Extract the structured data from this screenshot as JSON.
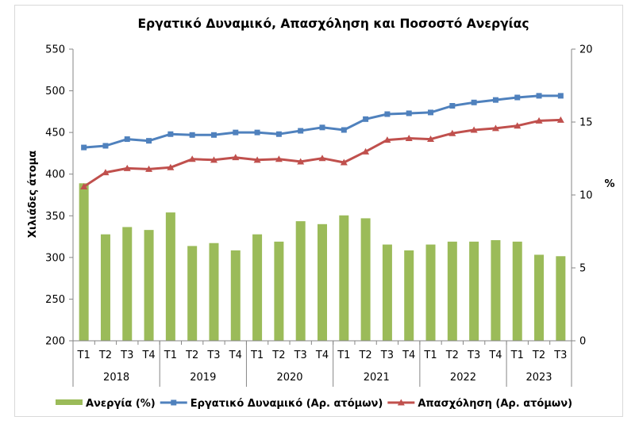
{
  "chart_data": {
    "type": "bar+line",
    "title": "Εργατικό Δυναμικό, Απασχόληση και Ποσοστό Ανεργίας",
    "ylabel": "Χιλιάδες άτομα",
    "y2label": "%",
    "ylim": [
      200,
      550
    ],
    "yticks": [
      200,
      250,
      300,
      350,
      400,
      450,
      500,
      550
    ],
    "y2lim": [
      0,
      20
    ],
    "y2ticks": [
      0,
      5,
      10,
      15,
      20
    ],
    "grid": false,
    "legend_position": "bottom",
    "categories": [
      "T1",
      "T2",
      "T3",
      "T4",
      "T1",
      "T2",
      "T3",
      "T4",
      "T1",
      "T2",
      "T3",
      "T4",
      "T1",
      "T2",
      "T3",
      "T4",
      "T1",
      "T2",
      "T3",
      "T4",
      "T1",
      "T2",
      "T3"
    ],
    "years": [
      {
        "label": "2018",
        "count": 4
      },
      {
        "label": "2019",
        "count": 4
      },
      {
        "label": "2020",
        "count": 4
      },
      {
        "label": "2021",
        "count": 4
      },
      {
        "label": "2022",
        "count": 4
      },
      {
        "label": "2023",
        "count": 3
      }
    ],
    "series": [
      {
        "name": "Ανεργία (%)",
        "type": "bar",
        "axis": "right",
        "color": "#9bbb59",
        "values": [
          10.8,
          7.3,
          7.8,
          7.6,
          8.8,
          6.5,
          6.7,
          6.2,
          7.3,
          6.8,
          8.2,
          8.0,
          8.6,
          8.4,
          6.6,
          6.2,
          6.6,
          6.8,
          6.8,
          6.9,
          6.8,
          5.9,
          5.8
        ]
      },
      {
        "name": "Εργατικό Δυναμικό (Αρ. ατόμων)",
        "type": "line",
        "axis": "left",
        "color": "#4f81bd",
        "marker": "square",
        "values": [
          432,
          434,
          442,
          440,
          448,
          447,
          447,
          450,
          450,
          448,
          452,
          456,
          453,
          466,
          472,
          473,
          474,
          482,
          486,
          489,
          492,
          494,
          494
        ]
      },
      {
        "name": "Απασχόληση (Αρ. ατόμων)",
        "type": "line",
        "axis": "left",
        "color": "#c0504d",
        "marker": "triangle",
        "values": [
          385,
          402,
          407,
          406,
          408,
          418,
          417,
          420,
          417,
          418,
          415,
          419,
          414,
          427,
          441,
          443,
          442,
          449,
          453,
          455,
          458,
          464,
          465
        ]
      }
    ]
  }
}
